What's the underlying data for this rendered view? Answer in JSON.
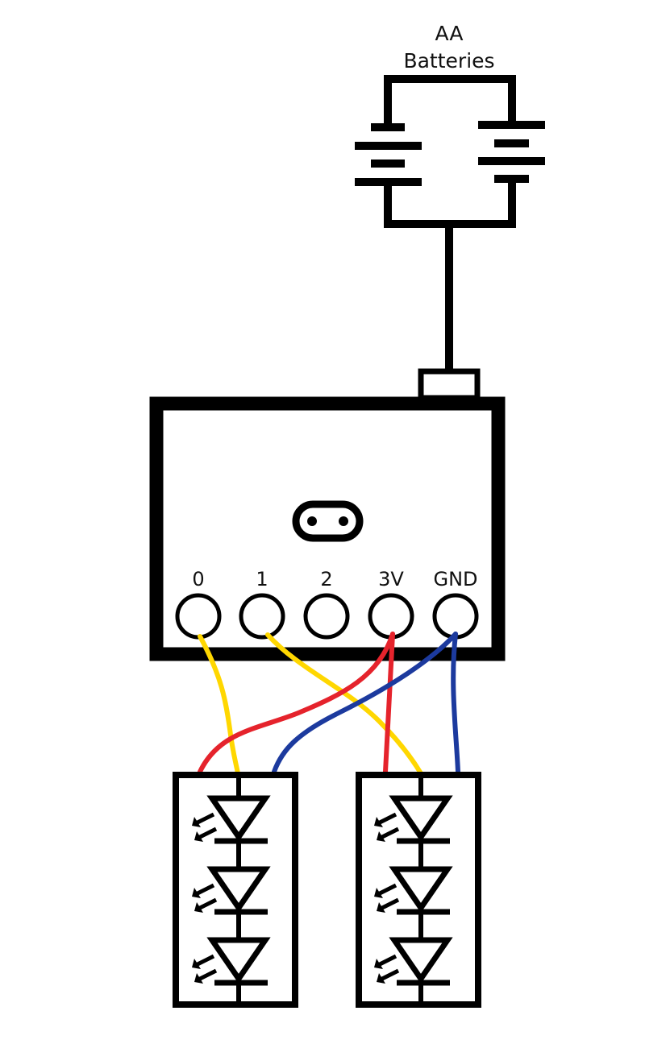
{
  "battery": {
    "label_line1": "AA",
    "label_line2": "Batteries"
  },
  "pins": [
    {
      "id": "pin-0",
      "label": "0"
    },
    {
      "id": "pin-1",
      "label": "1"
    },
    {
      "id": "pin-2",
      "label": "2"
    },
    {
      "id": "pin-3v",
      "label": "3V"
    },
    {
      "id": "pin-gnd",
      "label": "GND"
    }
  ],
  "colors": {
    "outline": "#000000",
    "signal_wire": "#FFD700",
    "power_wire": "#E5232C",
    "ground_wire": "#1C3A9E"
  },
  "led_strings": [
    {
      "id": "led-string-left",
      "led_count": 3
    },
    {
      "id": "led-string-right",
      "led_count": 3
    }
  ]
}
